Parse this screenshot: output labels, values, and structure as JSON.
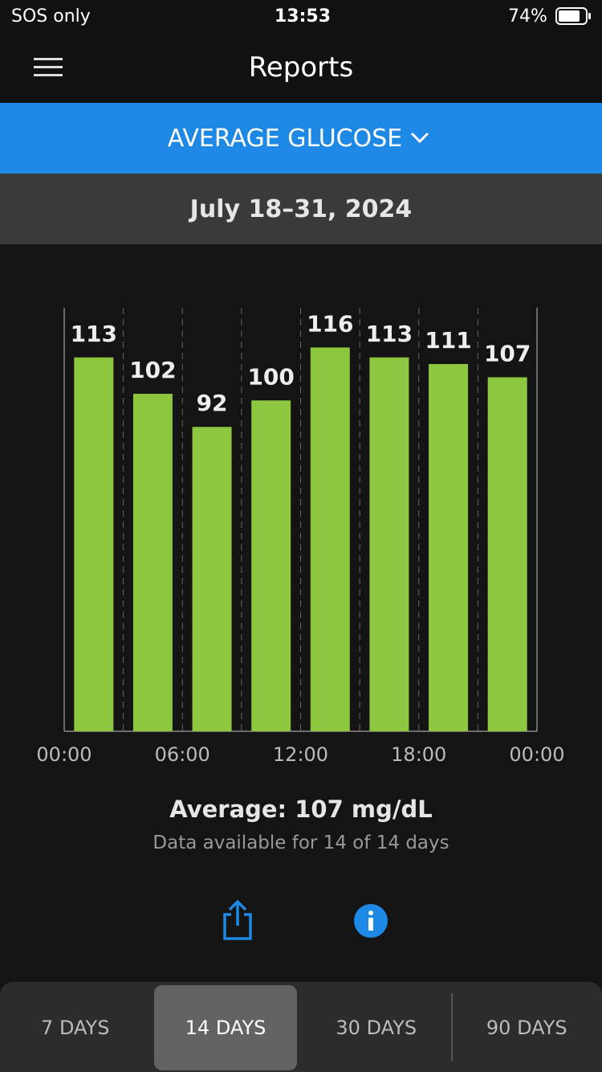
{
  "status_bar": {
    "carrier": "SOS only",
    "time": "13:53",
    "battery": "74%"
  },
  "header": {
    "title": "Reports"
  },
  "report_selector": "AVERAGE GLUCOSE",
  "date_range": "July 18–31, 2024",
  "chart_data": {
    "type": "bar",
    "values": [
      113,
      102,
      92,
      100,
      116,
      113,
      111,
      107
    ],
    "color": "#8dc63f",
    "ylim": [
      0,
      128
    ],
    "xtick_labels": [
      "00:00",
      "06:00",
      "12:00",
      "18:00",
      "00:00"
    ],
    "grid": true
  },
  "summary": {
    "average": "Average: 107 mg/dL",
    "availability": "Data available for 14 of 14 days"
  },
  "tabs": [
    {
      "label": "7 DAYS",
      "selected": false
    },
    {
      "label": "14 DAYS",
      "selected": true
    },
    {
      "label": "30 DAYS",
      "selected": false
    },
    {
      "label": "90 DAYS",
      "selected": false
    }
  ]
}
